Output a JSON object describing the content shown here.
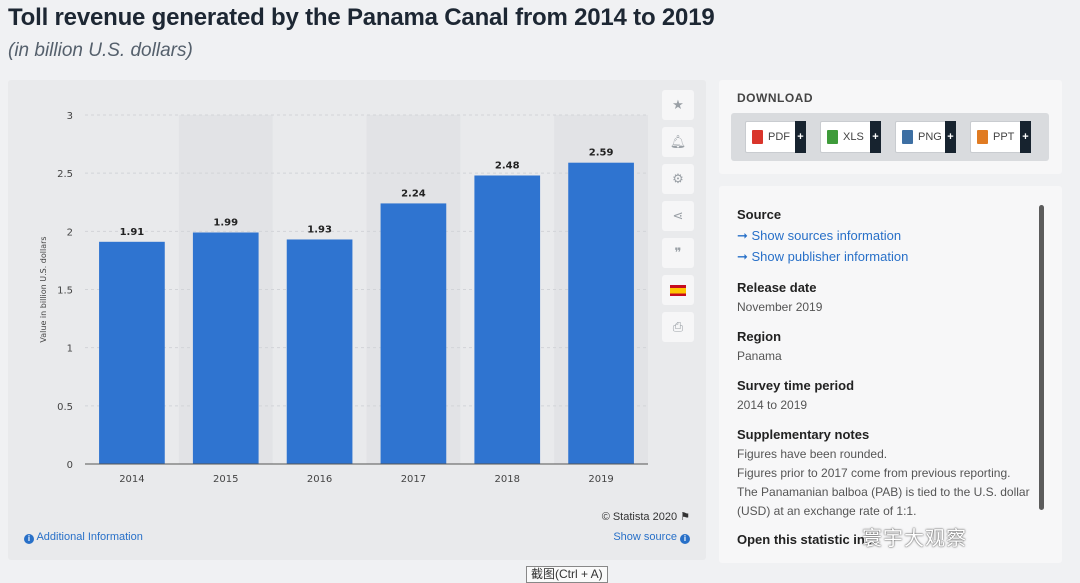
{
  "header": {
    "title": "Toll revenue generated by the Panama Canal from 2014 to 2019",
    "subtitle": "(in billion U.S. dollars)"
  },
  "chart_data": {
    "type": "bar",
    "categories": [
      "2014",
      "2015",
      "2016",
      "2017",
      "2018",
      "2019"
    ],
    "values": [
      1.91,
      1.99,
      1.93,
      2.24,
      2.48,
      2.59
    ],
    "value_labels": [
      "1.91",
      "1.99",
      "1.93",
      "2.24",
      "2.48",
      "2.59"
    ],
    "ylabel": "Value in billion U.S. dollars",
    "ylim": [
      0,
      3
    ],
    "yticks": [
      "0",
      "0.5",
      "1",
      "1.5",
      "2",
      "2.5",
      "3"
    ],
    "grid": true,
    "bar_color": "#2f74d0"
  },
  "chart_footer": {
    "copyright": "© Statista 2020",
    "additional_info": "Additional Information",
    "show_source": "Show source"
  },
  "side_tools": [
    "star-icon",
    "bell-icon",
    "gear-icon",
    "share-icon",
    "quote-icon",
    "spain-flag-icon",
    "print-icon"
  ],
  "download": {
    "title": "DOWNLOAD",
    "buttons": [
      {
        "label": "PDF",
        "color": "#d9352b"
      },
      {
        "label": "XLS",
        "color": "#3e9b3a"
      },
      {
        "label": "PNG",
        "color": "#3d6fa3"
      },
      {
        "label": "PPT",
        "color": "#e07b22"
      }
    ]
  },
  "source": {
    "heading": "Source",
    "link_sources": "➞ Show sources information",
    "link_publisher": "➞ Show publisher information",
    "release_heading": "Release date",
    "release_value": "November 2019",
    "region_heading": "Region",
    "region_value": "Panama",
    "survey_heading": "Survey time period",
    "survey_value": "2014 to 2019",
    "notes_heading": "Supplementary notes",
    "notes_1": "Figures have been rounded.",
    "notes_2": "Figures prior to 2017 come from previous reporting.",
    "notes_3": "The Panamanian balboa (PAB) is tied to the U.S. dollar (USD) at an exchange rate of 1:1.",
    "open_heading": "Open this statistic in..."
  },
  "overlay": {
    "watermark": "寰宇大观察",
    "tooltip": "截图(Ctrl + A)"
  }
}
